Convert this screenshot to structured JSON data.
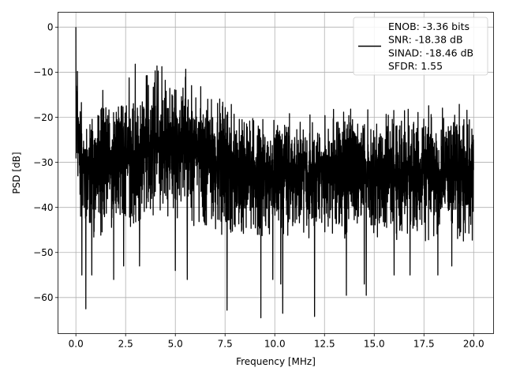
{
  "chart_data": {
    "type": "line",
    "xlabel": "Frequency [MHz]",
    "ylabel": "PSD [dB]",
    "xlim": [
      -0.9,
      21.0
    ],
    "ylim": [
      -68,
      3.3
    ],
    "xticks": [
      0.0,
      2.5,
      5.0,
      7.5,
      10.0,
      12.5,
      15.0,
      17.5,
      20.0
    ],
    "xtick_labels": [
      "0.0",
      "2.5",
      "5.0",
      "7.5",
      "10.0",
      "12.5",
      "15.0",
      "17.5",
      "20.0"
    ],
    "yticks": [
      0,
      -10,
      -20,
      -30,
      -40,
      -50,
      -60
    ],
    "ytick_labels": [
      "0",
      "−10",
      "−20",
      "−30",
      "−40",
      "−50",
      "−60"
    ],
    "grid": true,
    "legend_position": "top-right",
    "legend": [
      "ENOB: -3.36 bits",
      "SNR: -18.38 dB",
      "SINAD: -18.46 dB",
      "SFDR: 1.55"
    ],
    "series": [
      {
        "color": "#000000",
        "x_start": 0.0,
        "x_end": 20.0,
        "upper_envelope": [
          [
            0,
            0
          ],
          [
            0.05,
            -3
          ],
          [
            0.1,
            -10
          ],
          [
            0.2,
            -14
          ],
          [
            0.5,
            -17
          ],
          [
            1.0,
            -14
          ],
          [
            1.5,
            -11
          ],
          [
            2.0,
            -11
          ],
          [
            2.5,
            -8
          ],
          [
            3.0,
            -8
          ],
          [
            3.5,
            -7
          ],
          [
            4.0,
            -6
          ],
          [
            4.5,
            -7
          ],
          [
            5.0,
            -8
          ],
          [
            5.5,
            -9
          ],
          [
            6.0,
            -11
          ],
          [
            6.5,
            -12
          ],
          [
            7.0,
            -13
          ],
          [
            7.5,
            -14
          ],
          [
            8.0,
            -16
          ],
          [
            9.0,
            -17
          ],
          [
            10.0,
            -18
          ],
          [
            11.0,
            -18
          ],
          [
            12.0,
            -18
          ],
          [
            13.0,
            -17
          ],
          [
            14.0,
            -16
          ],
          [
            15.0,
            -17
          ],
          [
            16.0,
            -17
          ],
          [
            17.0,
            -17
          ],
          [
            18.0,
            -17
          ],
          [
            19.0,
            -17
          ],
          [
            20.0,
            -17
          ]
        ],
        "lower_envelope": [
          [
            0,
            -30
          ],
          [
            0.2,
            -42
          ],
          [
            0.5,
            -48
          ],
          [
            1.0,
            -47
          ],
          [
            2.0,
            -45
          ],
          [
            3.0,
            -45
          ],
          [
            4.0,
            -44
          ],
          [
            5.0,
            -44
          ],
          [
            6.0,
            -45
          ],
          [
            7.0,
            -46
          ],
          [
            8.0,
            -47
          ],
          [
            9.0,
            -47
          ],
          [
            10.0,
            -47
          ],
          [
            11.0,
            -47
          ],
          [
            12.0,
            -47
          ],
          [
            13.0,
            -47
          ],
          [
            14.0,
            -47
          ],
          [
            15.0,
            -48
          ],
          [
            16.0,
            -48
          ],
          [
            17.0,
            -48
          ],
          [
            18.0,
            -48
          ],
          [
            19.0,
            -48
          ],
          [
            20.0,
            -48
          ]
        ],
        "notable_points": [
          [
            0.0,
            0.0
          ],
          [
            0.3,
            -55
          ],
          [
            0.5,
            -62.5
          ],
          [
            0.8,
            -55
          ],
          [
            1.9,
            -56
          ],
          [
            2.4,
            -53
          ],
          [
            3.2,
            -53
          ],
          [
            5.0,
            -54
          ],
          [
            5.6,
            -56
          ],
          [
            7.6,
            -62.8
          ],
          [
            9.3,
            -64.5
          ],
          [
            9.9,
            -56
          ],
          [
            10.3,
            -57
          ],
          [
            10.4,
            -63.5
          ],
          [
            12.0,
            -64.2
          ],
          [
            13.6,
            -59.5
          ],
          [
            14.5,
            -57
          ],
          [
            14.6,
            -59.5
          ],
          [
            16.0,
            -55
          ],
          [
            16.8,
            -55
          ],
          [
            18.2,
            -55
          ],
          [
            18.9,
            -53
          ]
        ]
      }
    ]
  }
}
